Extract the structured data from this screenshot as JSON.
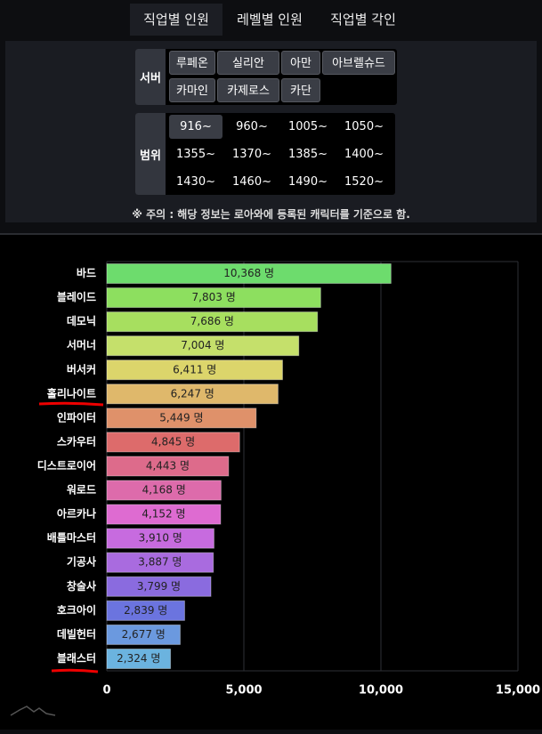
{
  "tabs": [
    "직업별 인원",
    "레벨별 인원",
    "직업별 각인"
  ],
  "server": {
    "label": "서버",
    "options": [
      "루페온",
      "실리안",
      "아만",
      "아브렐슈드",
      "카마인",
      "카제로스",
      "카단"
    ]
  },
  "range": {
    "label": "범위",
    "options": [
      "916~",
      "960~",
      "1005~",
      "1050~",
      "1355~",
      "1370~",
      "1385~",
      "1400~",
      "1430~",
      "1460~",
      "1490~",
      "1520~"
    ]
  },
  "note": "※ 주의 : 해당 정보는 로아와에 등록된 캐릭터를 기준으로 함.",
  "chart_data": {
    "type": "hbar",
    "categories": [
      "바드",
      "블레이드",
      "데모닉",
      "서머너",
      "버서커",
      "홀리나이트",
      "인파이터",
      "스카우터",
      "디스트로이어",
      "워로드",
      "아르카나",
      "배틀마스터",
      "기공사",
      "창술사",
      "호크아이",
      "데빌헌터",
      "블래스터"
    ],
    "values": [
      10368,
      7803,
      7686,
      7004,
      6411,
      6247,
      5449,
      4845,
      4443,
      4168,
      4152,
      3910,
      3887,
      3799,
      2839,
      2677,
      2324
    ],
    "value_labels": [
      "10,368 명",
      "7,803 명",
      "7,686 명",
      "7,004 명",
      "6,411 명",
      "6,247 명",
      "5,449 명",
      "4,845 명",
      "4,443 명",
      "4,168 명",
      "4,152 명",
      "3,910 명",
      "3,887 명",
      "3,799 명",
      "2,839 명",
      "2,677 명",
      "2,324 명"
    ],
    "colors": [
      "#6ddc6d",
      "#8ddf5f",
      "#a7df5f",
      "#c5e06b",
      "#dcd56b",
      "#dfb86b",
      "#df916a",
      "#dd6b6b",
      "#dd6b8b",
      "#dd6bab",
      "#de6bd1",
      "#c76bdf",
      "#a96bdf",
      "#8a6bdf",
      "#6b74df",
      "#6b99df",
      "#6bb3df"
    ],
    "xlim": [
      0,
      15000
    ],
    "xticks": [
      0,
      {
        "value": 5000,
        "label": "5,000"
      },
      {
        "value": 10000,
        "label": "10,000"
      },
      {
        "value": 15000,
        "label": "15,000"
      }
    ],
    "grid": true
  }
}
